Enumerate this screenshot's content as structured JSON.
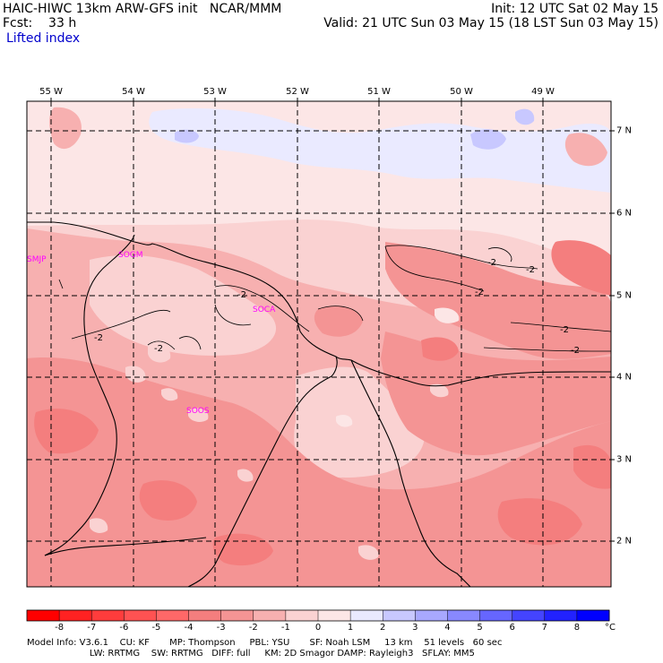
{
  "header": {
    "model_title": "HAIC-HIWC 13km ARW-GFS init   NCAR/MMM",
    "forecast": "Fcst:    33 h",
    "field": "Lifted index",
    "init": "Init: 12 UTC Sat 02 May 15",
    "valid": "Valid: 21 UTC Sun 03 May 15 (18 LST Sun 03 May 15)"
  },
  "map": {
    "lon_labels": [
      "55 W",
      "54 W",
      "53 W",
      "52 W",
      "51 W",
      "50 W",
      "49 W"
    ],
    "lat_labels": [
      "7 N",
      "6 N",
      "5 N",
      "4 N",
      "3 N",
      "2 N"
    ],
    "stations": [
      "SMJP",
      "SOGM",
      "SOCA",
      "SOOS"
    ],
    "contour_labels": [
      "-2",
      "-2",
      "-2",
      "-2",
      "-2",
      "-2",
      "-2",
      "-2"
    ]
  },
  "colorbar": {
    "labels": [
      "-8",
      "-7",
      "-6",
      "-5",
      "-4",
      "-3",
      "-2",
      "-1",
      "0",
      "1",
      "2",
      "3",
      "4",
      "5",
      "6",
      "7",
      "8"
    ],
    "unit": "°C",
    "colors": [
      "#ff0000",
      "#ff2222",
      "#ff3c3c",
      "#ff5252",
      "#ff6868",
      "#f47e7e",
      "#f49494",
      "#f7b0b0",
      "#fad2d2",
      "#fce6e6",
      "#eaeaff",
      "#c8c8ff",
      "#a8a8ff",
      "#8888ff",
      "#6666ff",
      "#4444ff",
      "#2222ff",
      "#0000ff"
    ]
  },
  "footer": {
    "line1": "Model Info: V3.6.1    CU: KF       MP: Thompson     PBL: YSU       SF: Noah LSM     13 km    51 levels   60 sec",
    "line2": "                      LW: RRTMG    SW: RRTMG   DIFF: full     KM: 2D Smagor DAMP: Rayleigh3   SFLAY: MM5"
  }
}
